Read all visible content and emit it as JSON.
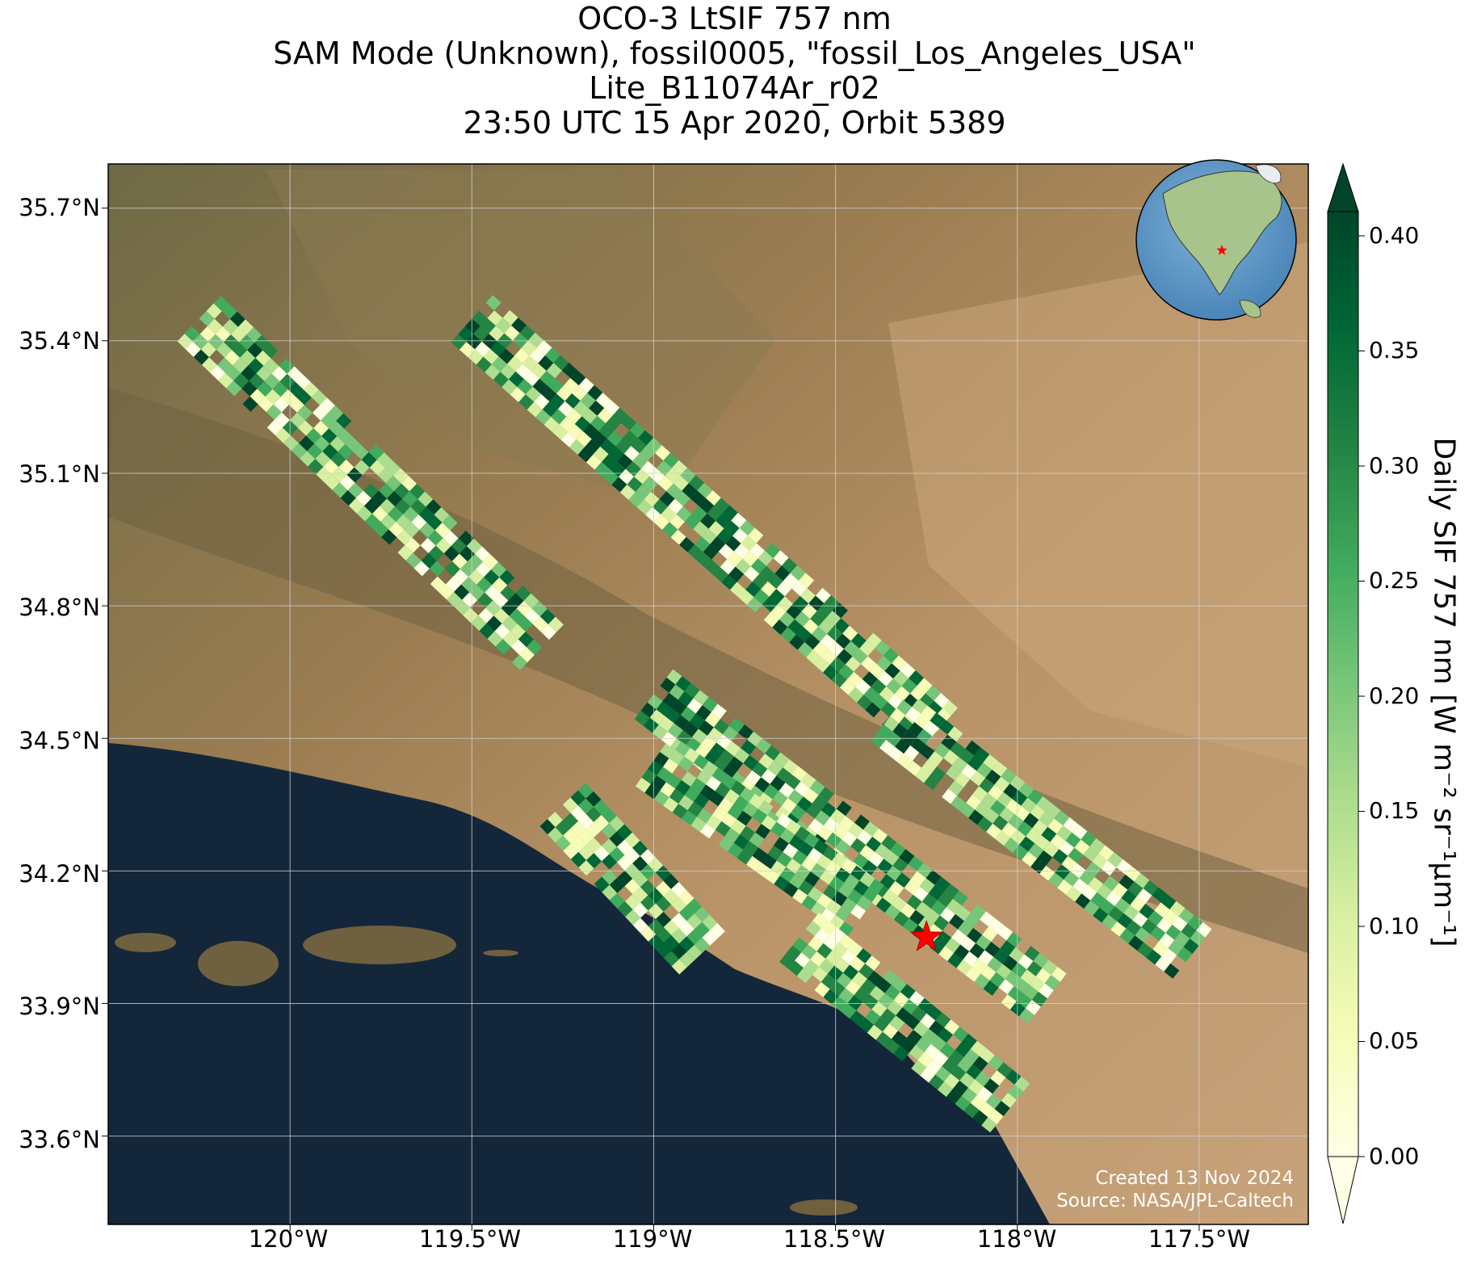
{
  "title_lines": [
    "OCO-3 LtSIF 757 nm",
    "SAM Mode (Unknown), fossil0005, \"fossil_Los_Angeles_USA\"",
    "Lite_B11074Ar_r02",
    "23:50 UTC 15 Apr 2020, Orbit 5389"
  ],
  "lat_ticks": [
    "35.7°N",
    "35.4°N",
    "35.1°N",
    "34.8°N",
    "34.5°N",
    "34.2°N",
    "33.9°N",
    "33.6°N"
  ],
  "lon_ticks": [
    "120°W",
    "119.5°W",
    "119°W",
    "118.5°W",
    "118°W",
    "117.5°W"
  ],
  "colorbar": {
    "label": "Daily SIF 757 nm [W m⁻² sr⁻¹μm⁻¹]",
    "ticks": [
      "0.00",
      "0.05",
      "0.10",
      "0.15",
      "0.20",
      "0.25",
      "0.30",
      "0.35",
      "0.40"
    ],
    "range": [
      0,
      0.4
    ],
    "colormap": "YlGn",
    "extend": "both"
  },
  "footer": {
    "created": "Created 13 Nov 2024",
    "source": "Source: NASA/JPL-Caltech"
  },
  "map": {
    "extent_lon": [
      -120.5,
      -117.2
    ],
    "extent_lat": [
      33.4,
      35.8
    ],
    "target_marker": "red-star",
    "target_lon": -118.25,
    "target_lat": 34.05,
    "ocean_color": "#14263a",
    "land_color": "#9c7a52",
    "inset": "globe-north-america"
  },
  "chart_data": {
    "type": "heatmap",
    "variable": "Daily SIF 757 nm",
    "value_range": [
      0,
      0.4
    ],
    "swaths": [
      {
        "lon": [
          -120.25,
          -119.3
        ],
        "lat": [
          35.45,
          34.7
        ]
      },
      {
        "lon": [
          -119.5,
          -118.2
        ],
        "lat": [
          35.45,
          34.5
        ]
      },
      {
        "lon": [
          -118.35,
          -117.5
        ],
        "lat": [
          34.55,
          34.0
        ]
      },
      {
        "lon": [
          -119.0,
          -117.9
        ],
        "lat": [
          34.6,
          33.9
        ]
      },
      {
        "lon": [
          -119.0,
          -118.4
        ],
        "lat": [
          34.45,
          34.1
        ]
      },
      {
        "lon": [
          -119.25,
          -118.85
        ],
        "lat": [
          34.35,
          34.0
        ]
      },
      {
        "lon": [
          -118.6,
          -118.0
        ],
        "lat": [
          34.05,
          33.65
        ]
      }
    ]
  }
}
